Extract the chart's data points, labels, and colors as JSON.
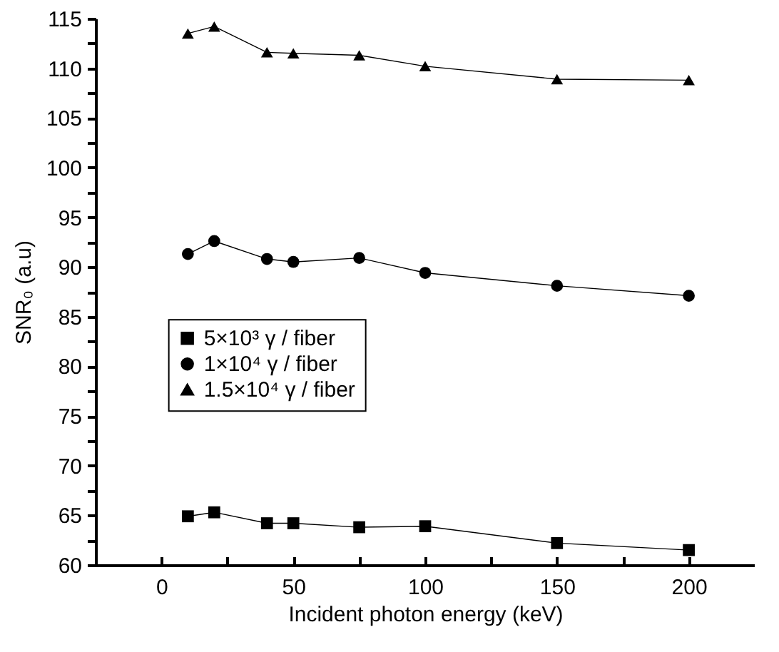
{
  "chart_data": {
    "type": "line",
    "xlabel": "Incident photon energy (keV)",
    "ylabel": "SNR₀ (a.u)",
    "x": [
      10,
      20,
      40,
      50,
      75,
      100,
      150,
      200
    ],
    "series": [
      {
        "name": "5×10³ γ / fiber",
        "color": "#000000",
        "marker": "square",
        "values": [
          64.9,
          65.3,
          64.2,
          64.2,
          63.8,
          63.9,
          62.2,
          61.5
        ]
      },
      {
        "name": "1×10⁴ γ / fiber",
        "color": "#000000",
        "marker": "circle",
        "values": [
          91.3,
          92.6,
          90.8,
          90.5,
          90.9,
          89.4,
          88.1,
          87.1
        ]
      },
      {
        "name": "1.5×10⁴ γ / fiber",
        "color": "#000000",
        "marker": "triangle",
        "values": [
          113.5,
          114.2,
          111.6,
          111.5,
          111.3,
          110.2,
          108.9,
          108.8
        ]
      }
    ],
    "xlim": [
      -25,
      225
    ],
    "xticks": [
      0,
      {
        "value": 25,
        "label": null
      },
      50,
      {
        "value": 75,
        "label": null
      },
      100,
      {
        "value": 125,
        "label": null
      },
      150,
      {
        "value": 175,
        "label": null
      },
      200
    ],
    "ylim": [
      60,
      115
    ],
    "yticks": [
      60,
      {
        "value": 62.5,
        "label": null
      },
      65,
      {
        "value": 67.5,
        "label": null
      },
      70,
      {
        "value": 72.5,
        "label": null
      },
      75,
      {
        "value": 77.5,
        "label": null
      },
      80,
      {
        "value": 82.5,
        "label": null
      },
      85,
      {
        "value": 87.5,
        "label": null
      },
      90,
      {
        "value": 92.5,
        "label": null
      },
      95,
      {
        "value": 97.5,
        "label": null
      },
      100,
      {
        "value": 102.5,
        "label": null
      },
      105,
      {
        "value": 107.5,
        "label": null
      },
      110,
      {
        "value": 112.5,
        "label": null
      },
      115
    ],
    "legend": "left",
    "grid": false,
    "line_style": "solid"
  }
}
